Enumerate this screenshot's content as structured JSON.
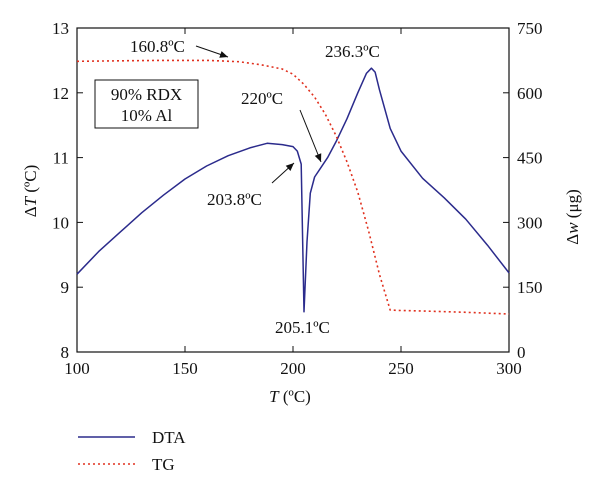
{
  "chart_data": {
    "type": "line",
    "xlabel": {
      "italic": "T",
      "rest": " (ºC)"
    },
    "ylabel_left": {
      "prefix": "Δ",
      "italic": "T",
      "rest": " (ºC)"
    },
    "ylabel_right": {
      "prefix": "Δ",
      "italic": "w",
      "rest": " (μg)"
    },
    "xlim": [
      100,
      300
    ],
    "ylim_left": [
      8,
      13
    ],
    "ylim_right": [
      0,
      750
    ],
    "x_ticks": [
      "100",
      "150",
      "200",
      "250",
      "300"
    ],
    "y_ticks_left": [
      "8",
      "9",
      "10",
      "11",
      "12",
      "13"
    ],
    "y_ticks_right": [
      "0",
      "150",
      "300",
      "450",
      "600",
      "750"
    ],
    "grid": false,
    "legend_position": "below chart, left",
    "series": [
      {
        "name": "DTA",
        "axis": "left",
        "color": "#2b2b8c",
        "style": "solid",
        "x": [
          100,
          110,
          120,
          130,
          140,
          150,
          160,
          170,
          180,
          188,
          195,
          200,
          202,
          203.8,
          205.1,
          206.5,
          208,
          210,
          213,
          216,
          220,
          225,
          230,
          234,
          236.3,
          238,
          240,
          245,
          250,
          260,
          270,
          280,
          290,
          300
        ],
        "y": [
          9.2,
          9.55,
          9.85,
          10.15,
          10.42,
          10.67,
          10.87,
          11.03,
          11.15,
          11.22,
          11.2,
          11.17,
          11.1,
          10.9,
          8.62,
          9.7,
          10.45,
          10.7,
          10.85,
          11.0,
          11.25,
          11.6,
          12.0,
          12.3,
          12.38,
          12.32,
          12.05,
          11.45,
          11.1,
          10.68,
          10.38,
          10.05,
          9.65,
          9.22
        ]
      },
      {
        "name": "TG",
        "axis": "right",
        "color": "#e0301e",
        "style": "dotted",
        "x": [
          100,
          120,
          140,
          160.8,
          175,
          185,
          195,
          200,
          205,
          210,
          215,
          220,
          225,
          230,
          235,
          240,
          245,
          250,
          260,
          280,
          300
        ],
        "y": [
          673,
          674,
          675,
          675,
          672,
          665,
          655,
          643,
          620,
          590,
          550,
          500,
          440,
          370,
          280,
          180,
          97,
          96,
          95,
          92,
          88
        ]
      }
    ],
    "annotations": [
      {
        "text": "160.8ºC",
        "arrow": true
      },
      {
        "text": "236.3ºC",
        "arrow": false
      },
      {
        "text": "220ºC",
        "arrow": true
      },
      {
        "text": "203.8ºC",
        "arrow": true
      },
      {
        "text": "205.1ºC",
        "arrow": false
      }
    ],
    "inset_box": {
      "line1": "90% RDX",
      "line2": "10% Al"
    },
    "legend": [
      {
        "label": "DTA",
        "color": "#2b2b8c",
        "style": "solid"
      },
      {
        "label": "TG",
        "color": "#e0301e",
        "style": "dotted"
      }
    ]
  }
}
